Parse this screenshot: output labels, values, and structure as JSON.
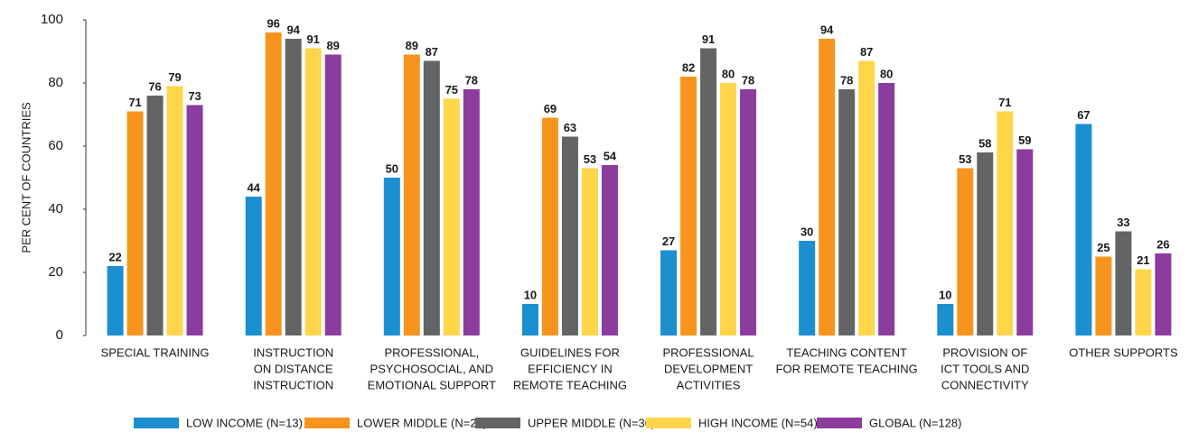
{
  "chart_data": {
    "type": "bar",
    "y_label": "PER CENT OF COUNTRIES",
    "categories": [
      [
        "SPECIAL TRAINING"
      ],
      [
        "INSTRUCTION",
        "ON DISTANCE",
        "INSTRUCTION"
      ],
      [
        "PROFESSIONAL,",
        "PSYCHOSOCIAL, AND",
        "EMOTIONAL SUPPORT"
      ],
      [
        "GUIDELINES FOR",
        "EFFICIENCY IN",
        "REMOTE TEACHING"
      ],
      [
        "PROFESSIONAL",
        "DEVELOPMENT",
        "ACTIVITIES"
      ],
      [
        "TEACHING CONTENT",
        "FOR REMOTE TEACHING"
      ],
      [
        "PROVISION OF",
        "ICT TOOLS AND",
        "CONNECTIVITY"
      ],
      [
        "OTHER SUPPORTS"
      ]
    ],
    "series": [
      {
        "name": "LOW INCOME (N=13)",
        "color": "#1b8fd0",
        "values": [
          22,
          44,
          50,
          10,
          27,
          30,
          10,
          67
        ]
      },
      {
        "name": "LOWER MIDDLE (N=25)",
        "color": "#f7941d",
        "values": [
          71,
          96,
          89,
          69,
          82,
          94,
          53,
          25
        ]
      },
      {
        "name": "UPPER MIDDLE (N=36)",
        "color": "#636466",
        "values": [
          76,
          94,
          87,
          63,
          91,
          78,
          58,
          33
        ]
      },
      {
        "name": "HIGH INCOME (N=54)",
        "color": "#ffd54a",
        "values": [
          79,
          91,
          75,
          53,
          80,
          87,
          71,
          21
        ]
      },
      {
        "name": "GLOBAL (N=128)",
        "color": "#8b3c9c",
        "values": [
          73,
          89,
          78,
          54,
          78,
          80,
          59,
          26
        ]
      }
    ],
    "ylim": [
      0,
      100
    ],
    "yticks": [
      0,
      20,
      40,
      60,
      80,
      100
    ],
    "grid": false,
    "legend": "bottom"
  }
}
